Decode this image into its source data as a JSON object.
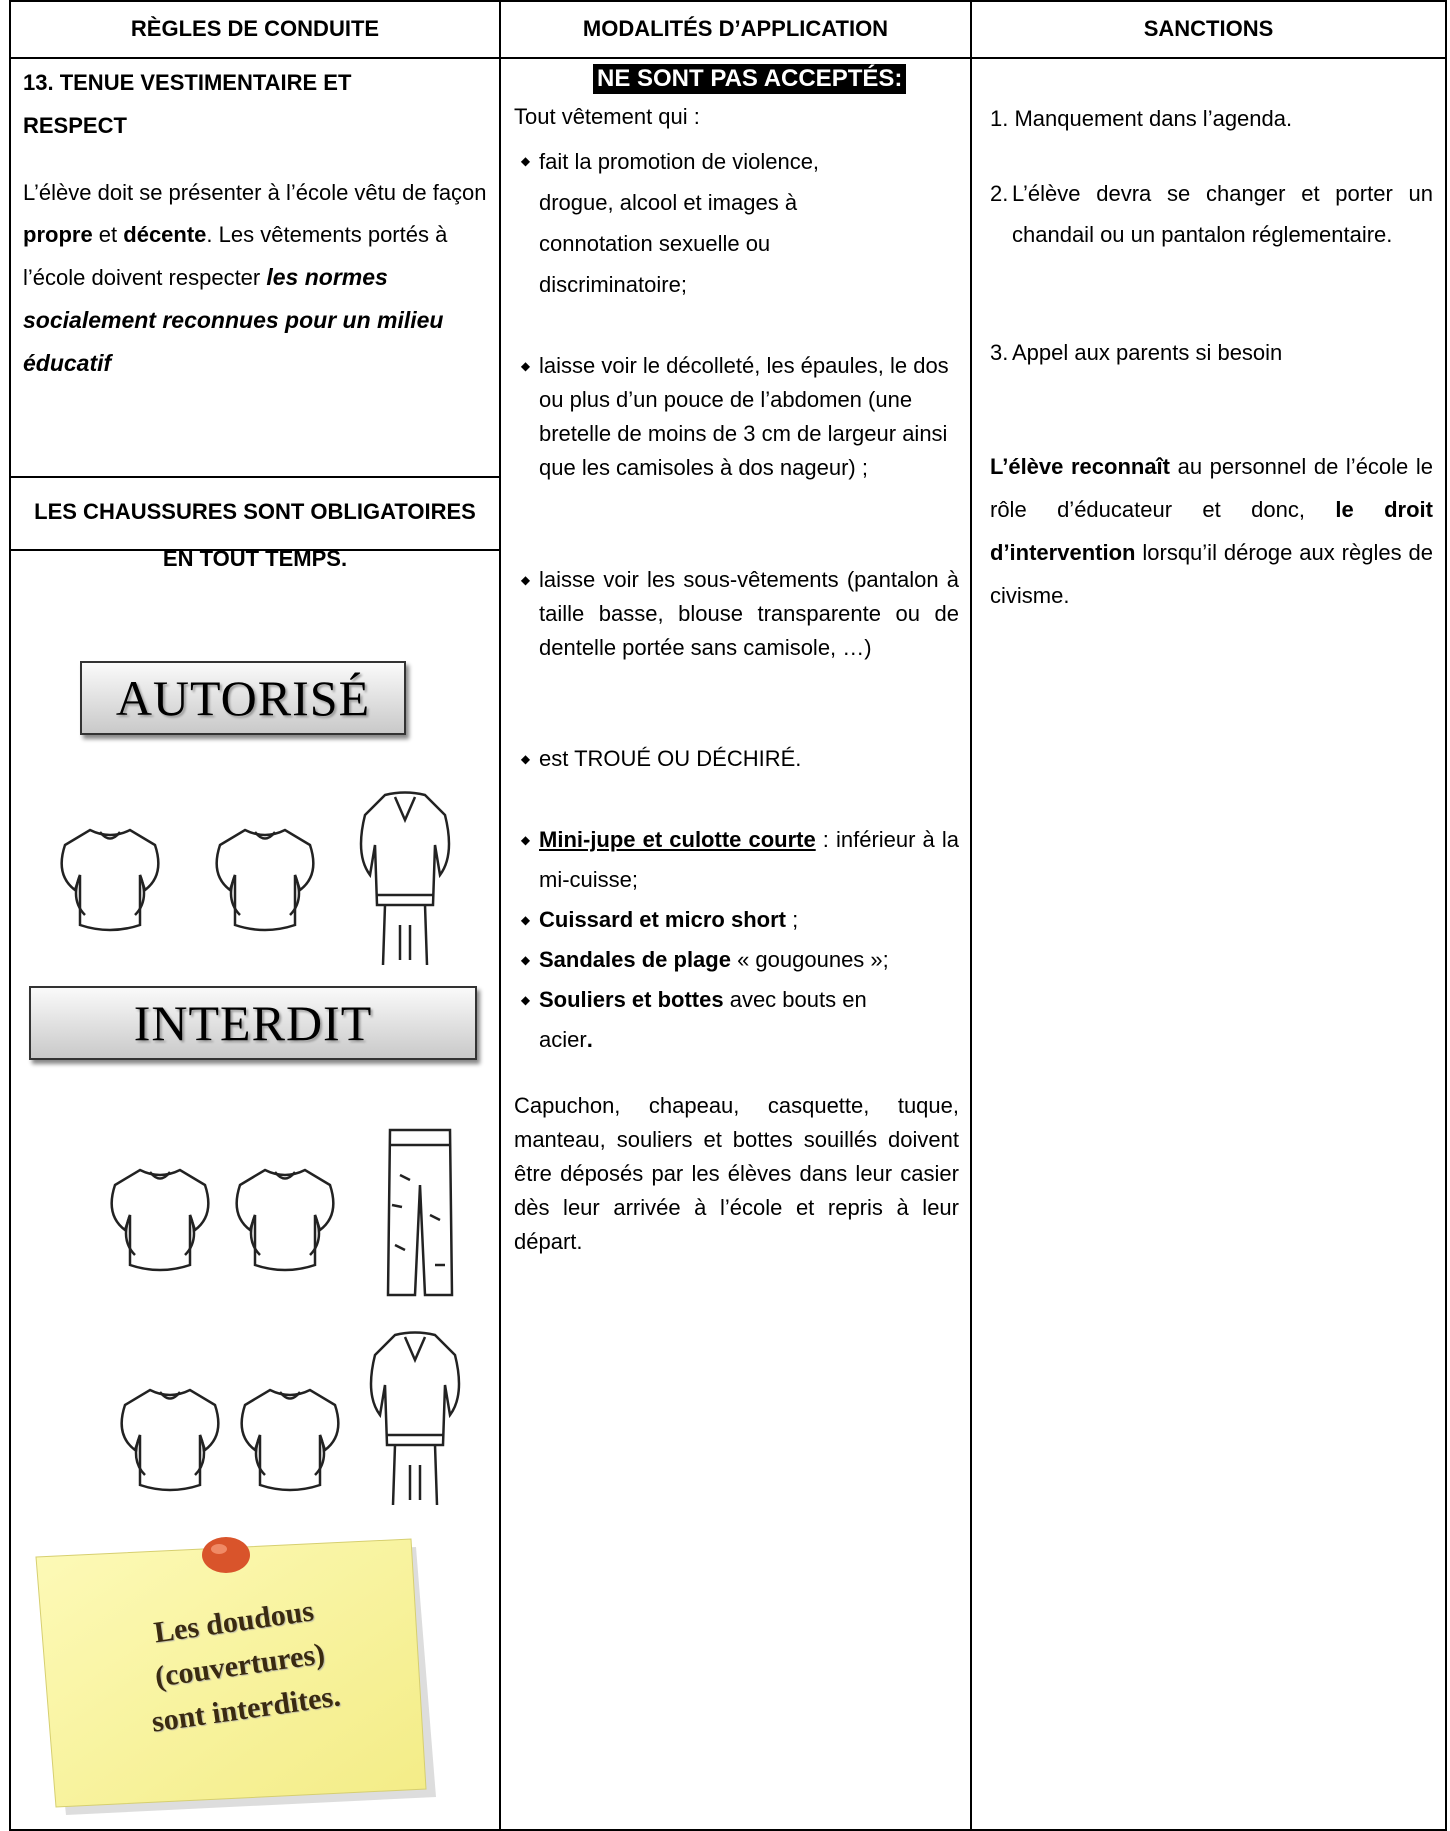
{
  "header": {
    "columns": [
      "RÈGLES DE CONDUITE",
      "MODALITÉS D’APPLICATION",
      "SANCTIONS"
    ]
  },
  "rules": {
    "title": "13. TENUE VESTIMENTAIRE ET RESPECT",
    "paragraph": [
      "L’élève doit se présenter à l’école vêtu de façon ",
      "propre",
      " et ",
      "décente",
      ". Les vêtements portés à l’école doivent respecter ",
      "les normes socialement reconnues pour un milieu éducatif"
    ],
    "shoes_notice": "LES CHAUSSURES SONT OBLIGATOIRES EN TOUT TEMPS.",
    "allowed_label": "AUTORISÉ",
    "forbidden_label": "INTERDIT",
    "note": [
      "Les doudous",
      "(couvertures)",
      "sont interdites."
    ]
  },
  "application": {
    "heading": "NE SONT PAS ACCEPTÉS:",
    "intro": "Tout vêtement qui :",
    "items": [
      [
        "fait la promotion de violence, drogue, alcool et images à connotation sexuelle ou discriminatoire;"
      ],
      [
        "laisse voir le décolleté, les épaules, le dos ou plus d’un pouce de l’abdomen (une bretelle de moins de 3 cm de largeur ainsi que les camisoles à dos nageur) ;"
      ],
      [
        "laisse voir les sous-vêtements (pantalon à taille basse, blouse transparente ou de dentelle portée sans camisole, …)"
      ],
      [
        "est TROUÉ OU DÉCHIRÉ."
      ],
      [
        "Mini-jupe et culotte courte",
        " : inférieur à la mi-cuisse;"
      ],
      [
        "Cuissard et micro short",
        " ;"
      ],
      [
        "Sandales de plage",
        " « gougounes »;"
      ],
      [
        "Souliers et bottes",
        " avec bouts en acier",
        "."
      ]
    ],
    "closing": "Capuchon, chapeau, casquette, tuque, manteau, souliers et bottes souillés doivent être déposés par les élèves dans leur casier dès leur arrivée à l’école et repris à leur départ."
  },
  "sanctions": {
    "items": [
      [
        "1. Manquement dans l’agenda."
      ],
      [
        "2.",
        "L’élève devra se changer et porter un chandail ou un pantalon réglementaire."
      ],
      [
        "3.",
        "Appel aux parents si besoin"
      ]
    ],
    "statement": [
      "L’élève reconnaît",
      " au personnel de l’école le rôle d’éducateur et donc, ",
      "le droit d’intervention",
      " lorsqu’il déroge aux règles de civisme."
    ]
  }
}
